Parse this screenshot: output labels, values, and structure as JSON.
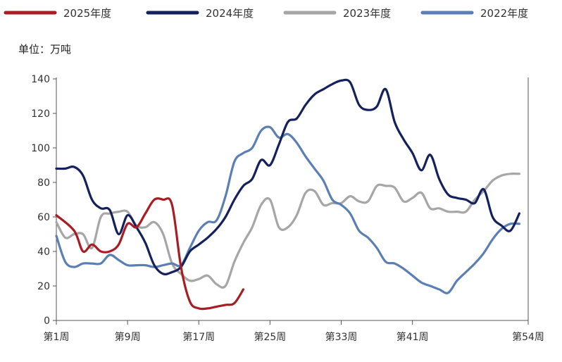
{
  "chart_data": {
    "type": "line",
    "unit_label": "单位：万吨",
    "xlabel": "",
    "ylabel": "",
    "ylim": [
      0,
      140
    ],
    "y_ticks": [
      0,
      20,
      40,
      60,
      80,
      100,
      120,
      140
    ],
    "xlim": [
      1,
      54
    ],
    "x_ticks": [
      {
        "week": 1,
        "label": "第1周"
      },
      {
        "week": 9,
        "label": "第9周"
      },
      {
        "week": 17,
        "label": "第17周"
      },
      {
        "week": 25,
        "label": "第25周"
      },
      {
        "week": 33,
        "label": "第33周"
      },
      {
        "week": 41,
        "label": "第41周"
      },
      {
        "week": 54,
        "label": "第54周"
      }
    ],
    "grid": false,
    "legend_position": "top",
    "series": [
      {
        "name": "2025年度",
        "color": "#a81d23",
        "x": [
          1,
          3,
          4,
          5,
          6,
          7,
          8,
          9,
          10,
          11,
          12,
          13,
          14,
          15,
          16,
          17,
          18,
          19,
          20,
          21,
          22
        ],
        "y": [
          61,
          52,
          40,
          44,
          40,
          40,
          44,
          56,
          54,
          62,
          70,
          70,
          67,
          31,
          11,
          7,
          7,
          8,
          9,
          10,
          18
        ]
      },
      {
        "name": "2024年度",
        "color": "#15215c",
        "x": [
          1,
          2,
          3,
          4,
          5,
          6,
          7,
          8,
          9,
          10,
          11,
          12,
          13,
          14,
          15,
          16,
          17,
          18,
          19,
          20,
          21,
          22,
          23,
          24,
          25,
          26,
          27,
          28,
          29,
          30,
          31,
          32,
          33,
          34,
          35,
          36,
          37,
          38,
          39,
          40,
          41,
          42,
          43,
          44,
          45,
          46,
          47,
          48,
          49,
          50,
          51,
          52,
          53
        ],
        "y": [
          88,
          88,
          89,
          84,
          70,
          65,
          64,
          50,
          61,
          54,
          45,
          32,
          27,
          28,
          31,
          40,
          44,
          48,
          53,
          60,
          70,
          78,
          82,
          93,
          90,
          102,
          115,
          117,
          125,
          131,
          134,
          137,
          139,
          138,
          125,
          122,
          124,
          134,
          115,
          105,
          97,
          87,
          96,
          82,
          73,
          71,
          70,
          68,
          76,
          60,
          55,
          52,
          62
        ]
      },
      {
        "name": "2023年度",
        "color": "#a6a6a6",
        "x": [
          1,
          2,
          3,
          4,
          5,
          6,
          7,
          8,
          9,
          10,
          11,
          12,
          13,
          14,
          15,
          16,
          17,
          18,
          19,
          20,
          21,
          22,
          23,
          24,
          25,
          26,
          27,
          28,
          29,
          30,
          31,
          32,
          33,
          34,
          35,
          36,
          37,
          38,
          39,
          40,
          41,
          42,
          43,
          44,
          45,
          46,
          47,
          48,
          49,
          50,
          51,
          52,
          53
        ],
        "y": [
          57,
          48,
          50,
          50,
          42,
          60,
          62,
          63,
          63,
          55,
          54,
          57,
          50,
          33,
          27,
          23,
          24,
          26,
          21,
          20,
          34,
          45,
          54,
          67,
          70,
          54,
          54,
          61,
          74,
          75,
          67,
          68,
          68,
          72,
          69,
          69,
          78,
          78,
          77,
          69,
          71,
          74,
          65,
          65,
          63,
          63,
          63,
          70,
          75,
          81,
          84,
          85,
          85
        ]
      },
      {
        "name": "2022年度",
        "color": "#5b7fb4",
        "x": [
          1,
          2,
          3,
          4,
          5,
          6,
          7,
          8,
          9,
          10,
          11,
          12,
          13,
          14,
          15,
          16,
          17,
          18,
          19,
          20,
          21,
          22,
          23,
          24,
          25,
          26,
          27,
          28,
          29,
          30,
          31,
          32,
          33,
          34,
          35,
          36,
          37,
          38,
          39,
          40,
          41,
          42,
          43,
          44,
          45,
          46,
          47,
          48,
          49,
          50,
          51,
          52,
          53
        ],
        "y": [
          49,
          34,
          31,
          33,
          33,
          33,
          38,
          35,
          32,
          32,
          32,
          31,
          32,
          33,
          32,
          42,
          52,
          57,
          58,
          72,
          92,
          97,
          100,
          110,
          112,
          106,
          108,
          103,
          95,
          88,
          81,
          70,
          67,
          62,
          52,
          48,
          42,
          34,
          33,
          30,
          26,
          22,
          20,
          18,
          16,
          23,
          28,
          33,
          39,
          47,
          53,
          56,
          56
        ]
      }
    ]
  }
}
